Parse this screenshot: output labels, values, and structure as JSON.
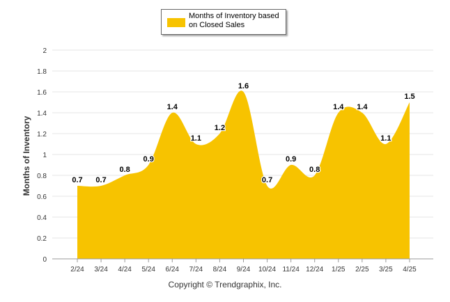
{
  "colors": {
    "series": "#F7C300",
    "grid": "#e6e6e6",
    "axis": "#999999",
    "text": "#333333"
  },
  "footer": "Copyright © Trendgraphix, Inc.",
  "chart_data": {
    "type": "area",
    "title": "",
    "xlabel": "",
    "ylabel": "Months of Inventory",
    "ylim": [
      0,
      2
    ],
    "yticks": [
      "0",
      "0.2",
      "0.4",
      "0.6",
      "0.8",
      "1",
      "1.2",
      "1.4",
      "1.6",
      "1.8",
      "2"
    ],
    "grid": true,
    "legend_position": "top-center",
    "categories": [
      "2/24",
      "3/24",
      "4/24",
      "5/24",
      "6/24",
      "7/24",
      "8/24",
      "9/24",
      "10/24",
      "11/24",
      "12/24",
      "1/25",
      "2/25",
      "3/25",
      "4/25"
    ],
    "series": [
      {
        "name": "Months of Inventory based on Closed Sales",
        "values": [
          0.7,
          0.7,
          0.8,
          0.9,
          1.4,
          1.1,
          1.2,
          1.6,
          0.7,
          0.9,
          0.8,
          1.4,
          1.4,
          1.1,
          1.5
        ],
        "labels": [
          "0.7",
          "0.7",
          "0.8",
          "0.9",
          "1.4",
          "1.1",
          "1.2",
          "1.6",
          "0.7",
          "0.9",
          "0.8",
          "1.4",
          "1.4",
          "1.1",
          "1.5"
        ]
      }
    ]
  }
}
